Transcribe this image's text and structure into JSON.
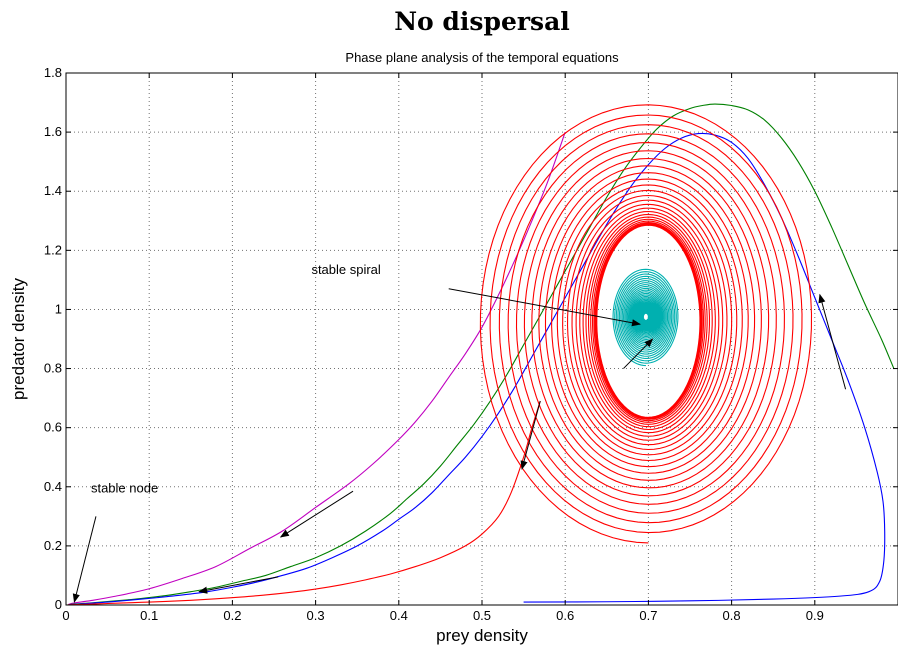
{
  "chart_data": {
    "type": "line",
    "title": "No dispersal",
    "subtitle": "Phase plane analysis of the temporal equations",
    "xlabel": "prey density",
    "ylabel": "predator density",
    "xlim": [
      0,
      1
    ],
    "ylim": [
      0,
      1.8
    ],
    "grid": true,
    "xticks": [
      "0",
      "0.1",
      "0.2",
      "0.3",
      "0.4",
      "0.5",
      "0.6",
      "0.7",
      "0.8",
      "0.9"
    ],
    "yticks": [
      "0",
      "0.2",
      "0.4",
      "0.6",
      "0.8",
      "1",
      "1.2",
      "1.4",
      "1.6",
      "1.8"
    ],
    "colors": {
      "magenta": "#c000c0",
      "green": "#008000",
      "blue": "#0000ff",
      "red": "#ff0000",
      "cyan": "#00b0b0"
    },
    "series": [
      {
        "color_key": "magenta",
        "x": [
          0.6,
          0.58,
          0.56,
          0.54,
          0.52,
          0.5,
          0.48,
          0.46,
          0.44,
          0.42,
          0.4,
          0.37,
          0.34,
          0.3,
          0.26,
          0.22,
          0.18,
          0.14,
          0.1,
          0.06,
          0.03,
          0.01,
          0.003
        ],
        "y": [
          1.6,
          1.44,
          1.3,
          1.17,
          1.05,
          0.94,
          0.85,
          0.77,
          0.69,
          0.62,
          0.56,
          0.48,
          0.41,
          0.33,
          0.25,
          0.19,
          0.13,
          0.09,
          0.055,
          0.03,
          0.015,
          0.007,
          0.002
        ]
      },
      {
        "color_key": "green",
        "x": [
          0.995,
          0.98,
          0.96,
          0.94,
          0.92,
          0.9,
          0.88,
          0.86,
          0.84,
          0.82,
          0.8,
          0.78,
          0.765,
          0.75,
          0.73,
          0.71,
          0.69,
          0.67,
          0.65,
          0.63,
          0.61,
          0.59,
          0.57,
          0.55,
          0.53,
          0.51,
          0.49,
          0.47,
          0.45,
          0.43,
          0.41,
          0.39,
          0.36,
          0.33,
          0.3,
          0.27,
          0.24,
          0.21,
          0.18,
          0.15,
          0.12,
          0.09,
          0.06,
          0.03,
          0.01,
          0.003
        ],
        "y": [
          0.8,
          0.9,
          1.02,
          1.15,
          1.28,
          1.4,
          1.5,
          1.58,
          1.64,
          1.675,
          1.69,
          1.695,
          1.69,
          1.68,
          1.655,
          1.61,
          1.545,
          1.47,
          1.38,
          1.28,
          1.18,
          1.08,
          0.98,
          0.88,
          0.78,
          0.69,
          0.61,
          0.54,
          0.47,
          0.41,
          0.36,
          0.31,
          0.25,
          0.2,
          0.16,
          0.13,
          0.1,
          0.08,
          0.06,
          0.045,
          0.032,
          0.022,
          0.014,
          0.007,
          0.003,
          0.001
        ]
      },
      {
        "color_key": "blue",
        "x": [
          0.55,
          0.65,
          0.75,
          0.85,
          0.93,
          0.965,
          0.978,
          0.983,
          0.984,
          0.982,
          0.975,
          0.96,
          0.94,
          0.92,
          0.9,
          0.88,
          0.86,
          0.84,
          0.82,
          0.8,
          0.78,
          0.76,
          0.74,
          0.72,
          0.7,
          0.68,
          0.66,
          0.64,
          0.62,
          0.6,
          0.58,
          0.56,
          0.54,
          0.52,
          0.5,
          0.48,
          0.46,
          0.44,
          0.42,
          0.4,
          0.38,
          0.35,
          0.32,
          0.29,
          0.26,
          0.23,
          0.2,
          0.17,
          0.14,
          0.11,
          0.08,
          0.05,
          0.03,
          0.01,
          0.003
        ],
        "y": [
          0.01,
          0.011,
          0.014,
          0.02,
          0.03,
          0.045,
          0.08,
          0.15,
          0.25,
          0.35,
          0.45,
          0.6,
          0.76,
          0.9,
          1.04,
          1.18,
          1.31,
          1.42,
          1.51,
          1.565,
          1.59,
          1.595,
          1.58,
          1.545,
          1.49,
          1.42,
          1.335,
          1.24,
          1.14,
          1.04,
          0.94,
          0.84,
          0.74,
          0.65,
          0.57,
          0.5,
          0.44,
          0.38,
          0.33,
          0.29,
          0.25,
          0.2,
          0.16,
          0.125,
          0.1,
          0.078,
          0.06,
          0.045,
          0.034,
          0.025,
          0.017,
          0.01,
          0.006,
          0.002,
          0.001
        ]
      },
      {
        "color_key": "red",
        "x": [
          0.57,
          0.56,
          0.55,
          0.535,
          0.52,
          0.5,
          0.48,
          0.45,
          0.42,
          0.39,
          0.36,
          0.33,
          0.3,
          0.27,
          0.24,
          0.21,
          0.18,
          0.15,
          0.12,
          0.09,
          0.06,
          0.04,
          0.02,
          0.008,
          0.002
        ],
        "y": [
          0.69,
          0.6,
          0.5,
          0.38,
          0.3,
          0.24,
          0.2,
          0.16,
          0.13,
          0.105,
          0.085,
          0.068,
          0.054,
          0.043,
          0.034,
          0.027,
          0.021,
          0.016,
          0.012,
          0.009,
          0.006,
          0.004,
          0.002,
          0.001,
          0.0005
        ]
      },
      {
        "color_key": "red",
        "spiral": true,
        "center": [
          0.7,
          0.96
        ],
        "start": [
          0.695,
          0.885
        ],
        "rx_range": [
          0.062,
          0.205
        ],
        "ry_range": [
          0.325,
          0.75
        ],
        "turns": 26
      },
      {
        "color_key": "cyan",
        "spiral": true,
        "center": [
          0.697,
          0.975
        ],
        "start": [
          0.695,
          0.945
        ],
        "rx_range": [
          0.003,
          0.04
        ],
        "ry_range": [
          0.012,
          0.165
        ],
        "turns": 40
      }
    ],
    "annotations": [
      {
        "text": "stable spiral",
        "x": 0.295,
        "y": 1.12
      },
      {
        "text": "stable node",
        "x": 0.03,
        "y": 0.38
      }
    ],
    "arrows": [
      {
        "from": [
          0.46,
          1.07
        ],
        "to": [
          0.69,
          0.95
        ]
      },
      {
        "from": [
          0.67,
          0.8
        ],
        "to": [
          0.705,
          0.9
        ]
      },
      {
        "from": [
          0.036,
          0.3
        ],
        "to": [
          0.01,
          0.01
        ]
      },
      {
        "from": [
          0.345,
          0.385
        ],
        "to": [
          0.258,
          0.23
        ]
      },
      {
        "from": [
          0.255,
          0.095
        ],
        "to": [
          0.16,
          0.045
        ]
      },
      {
        "from": [
          0.57,
          0.69
        ],
        "to": [
          0.548,
          0.46
        ]
      },
      {
        "from": [
          0.937,
          0.73
        ],
        "to": [
          0.906,
          1.05
        ]
      }
    ]
  }
}
